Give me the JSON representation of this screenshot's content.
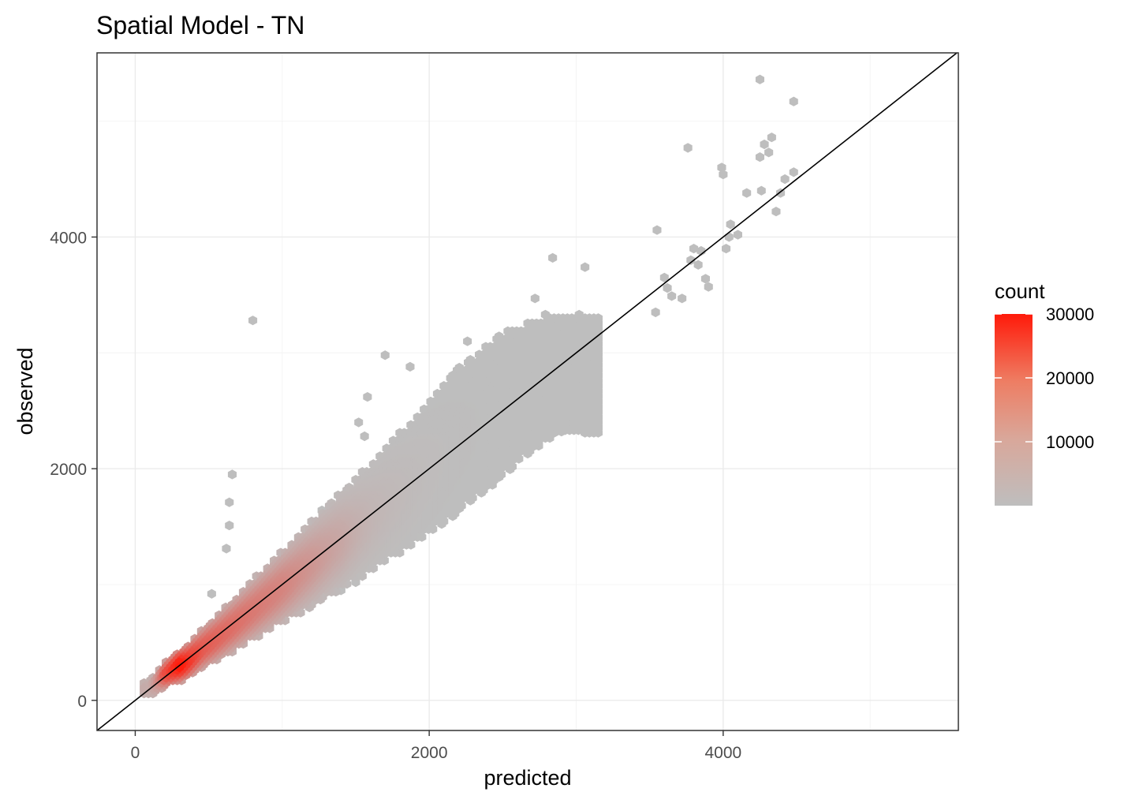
{
  "chart_data": {
    "type": "hexbin",
    "title": "Spatial Model - TN",
    "xlabel": "predicted",
    "ylabel": "observed",
    "xlim": [
      -260,
      5600
    ],
    "ylim": [
      -260,
      5590
    ],
    "x_ticks": [
      0,
      2000,
      4000
    ],
    "x_tick_labels": [
      "0",
      "2000",
      "4000"
    ],
    "y_ticks": [
      0,
      2000,
      4000
    ],
    "y_tick_labels": [
      "0",
      "2000",
      "4000"
    ],
    "grid": true,
    "legend": {
      "title": "count",
      "position": "right",
      "ticks": [
        10000,
        20000,
        30000
      ],
      "tick_labels": [
        "10000",
        "20000",
        "30000"
      ],
      "range": [
        1,
        30000
      ],
      "low_color": "#BEBEBE",
      "high_color": "#FF1A0A"
    },
    "reference_line": {
      "slope": 1,
      "intercept": 0,
      "color": "#000000"
    },
    "dense_band": [
      [
        100,
        100,
        2000
      ],
      [
        200,
        220,
        18000
      ],
      [
        300,
        300,
        30000
      ],
      [
        350,
        330,
        24000
      ],
      [
        450,
        440,
        16000
      ],
      [
        600,
        580,
        13000
      ],
      [
        800,
        780,
        10000
      ],
      [
        1000,
        980,
        8000
      ],
      [
        1200,
        1180,
        5000
      ],
      [
        1400,
        1380,
        2500
      ],
      [
        1600,
        1580,
        800
      ],
      [
        1900,
        1900,
        200
      ],
      [
        2200,
        2250,
        40
      ],
      [
        2600,
        2650,
        5
      ],
      [
        2900,
        2850,
        3
      ]
    ],
    "outliers": [
      [
        250,
        200
      ],
      [
        800,
        3280
      ],
      [
        660,
        1950
      ],
      [
        640,
        1710
      ],
      [
        640,
        1510
      ],
      [
        620,
        1310
      ],
      [
        520,
        920
      ],
      [
        950,
        1200
      ],
      [
        1220,
        1000
      ],
      [
        1400,
        950
      ],
      [
        1500,
        1020
      ],
      [
        1270,
        1640
      ],
      [
        1520,
        2400
      ],
      [
        1580,
        2620
      ],
      [
        1560,
        2280
      ],
      [
        1650,
        1480
      ],
      [
        1700,
        2980
      ],
      [
        1870,
        2880
      ],
      [
        2000,
        2100
      ],
      [
        2260,
        3100
      ],
      [
        2230,
        2640
      ],
      [
        2650,
        2980
      ],
      [
        2700,
        3100
      ],
      [
        2760,
        2300
      ],
      [
        2900,
        2320
      ],
      [
        2540,
        2700
      ],
      [
        2600,
        2150
      ],
      [
        2440,
        1900
      ],
      [
        2720,
        3470
      ],
      [
        2840,
        3820
      ],
      [
        2790,
        3330
      ],
      [
        2930,
        3200
      ],
      [
        3060,
        3740
      ],
      [
        3020,
        3330
      ],
      [
        3000,
        3150
      ],
      [
        2850,
        3050
      ],
      [
        2950,
        2890
      ],
      [
        3550,
        4060
      ],
      [
        3540,
        3350
      ],
      [
        3650,
        3490
      ],
      [
        3720,
        3470
      ],
      [
        3600,
        3650
      ],
      [
        3620,
        3560
      ],
      [
        3780,
        3800
      ],
      [
        3800,
        3900
      ],
      [
        3850,
        3880
      ],
      [
        3900,
        3570
      ],
      [
        3880,
        3640
      ],
      [
        3830,
        3760
      ],
      [
        3760,
        4770
      ],
      [
        3990,
        4600
      ],
      [
        4000,
        4540
      ],
      [
        4050,
        4110
      ],
      [
        4100,
        4020
      ],
      [
        4020,
        3900
      ],
      [
        4040,
        4000
      ],
      [
        4160,
        4380
      ],
      [
        4250,
        5360
      ],
      [
        4310,
        4730
      ],
      [
        4330,
        4860
      ],
      [
        4280,
        4800
      ],
      [
        4250,
        4690
      ],
      [
        4420,
        4500
      ],
      [
        4480,
        4560
      ],
      [
        4390,
        4380
      ],
      [
        4360,
        4220
      ],
      [
        4480,
        5170
      ],
      [
        4260,
        4400
      ]
    ]
  }
}
